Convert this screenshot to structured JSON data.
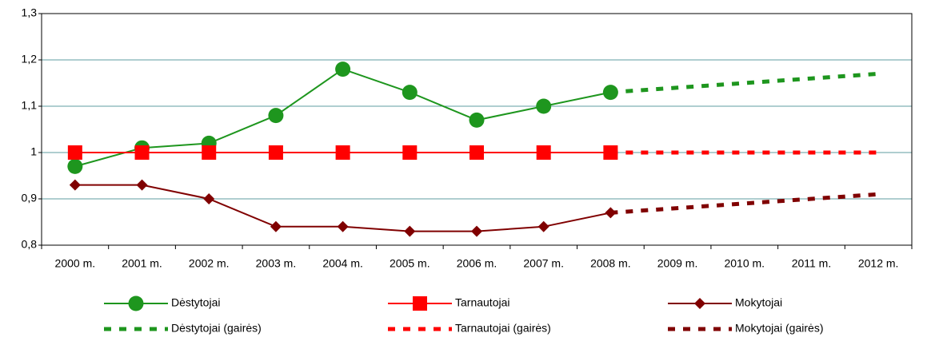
{
  "chart_data": {
    "type": "line",
    "categories": [
      "2000 m.",
      "2001 m.",
      "2002 m.",
      "2003 m.",
      "2004 m.",
      "2005 m.",
      "2006 m.",
      "2007 m.",
      "2008 m.",
      "2009 m.",
      "2010 m.",
      "2011 m.",
      "2012 m."
    ],
    "series": [
      {
        "name": "Dėstytojai",
        "color": "#1e961e",
        "marker": "circle",
        "dashed": false,
        "values": [
          0.97,
          1.01,
          1.02,
          1.08,
          1.18,
          1.13,
          1.07,
          1.1,
          1.13,
          null,
          null,
          null,
          null
        ]
      },
      {
        "name": "Tarnautojai",
        "color": "#ff0000",
        "marker": "square",
        "dashed": false,
        "values": [
          1,
          1,
          1,
          1,
          1,
          1,
          1,
          1,
          1,
          null,
          null,
          null,
          null
        ]
      },
      {
        "name": "Mokytojai",
        "color": "#800000",
        "marker": "diamond",
        "dashed": false,
        "values": [
          0.93,
          0.93,
          0.9,
          0.84,
          0.84,
          0.83,
          0.83,
          0.84,
          0.87,
          null,
          null,
          null,
          null
        ]
      },
      {
        "name": "Dėstytojai (gairės)",
        "color": "#1e961e",
        "dashed": true,
        "values": [
          null,
          null,
          null,
          null,
          null,
          null,
          null,
          null,
          1.13,
          1.14,
          1.15,
          1.16,
          1.17
        ]
      },
      {
        "name": "Tarnautojai (gairės)",
        "color": "#ff0000",
        "dashed": true,
        "values": [
          null,
          null,
          null,
          null,
          null,
          null,
          null,
          null,
          1,
          1,
          1,
          1,
          1
        ]
      },
      {
        "name": "Mokytojai (gairės)",
        "color": "#800000",
        "dashed": true,
        "values": [
          null,
          null,
          null,
          null,
          null,
          null,
          null,
          null,
          0.87,
          0.88,
          0.89,
          0.9,
          0.91
        ]
      }
    ],
    "ylim": [
      0.8,
      1.3
    ],
    "yticks": [
      {
        "value": 0.8,
        "label": "0,8"
      },
      {
        "value": 0.9,
        "label": "0,9"
      },
      1,
      {
        "value": 1.1,
        "label": "1,1"
      },
      {
        "value": 1.2,
        "label": "1,2"
      },
      {
        "value": 1.3,
        "label": "1,3"
      }
    ],
    "grid": true,
    "grid_color": "#5f9ea0",
    "legend": "bottom"
  }
}
